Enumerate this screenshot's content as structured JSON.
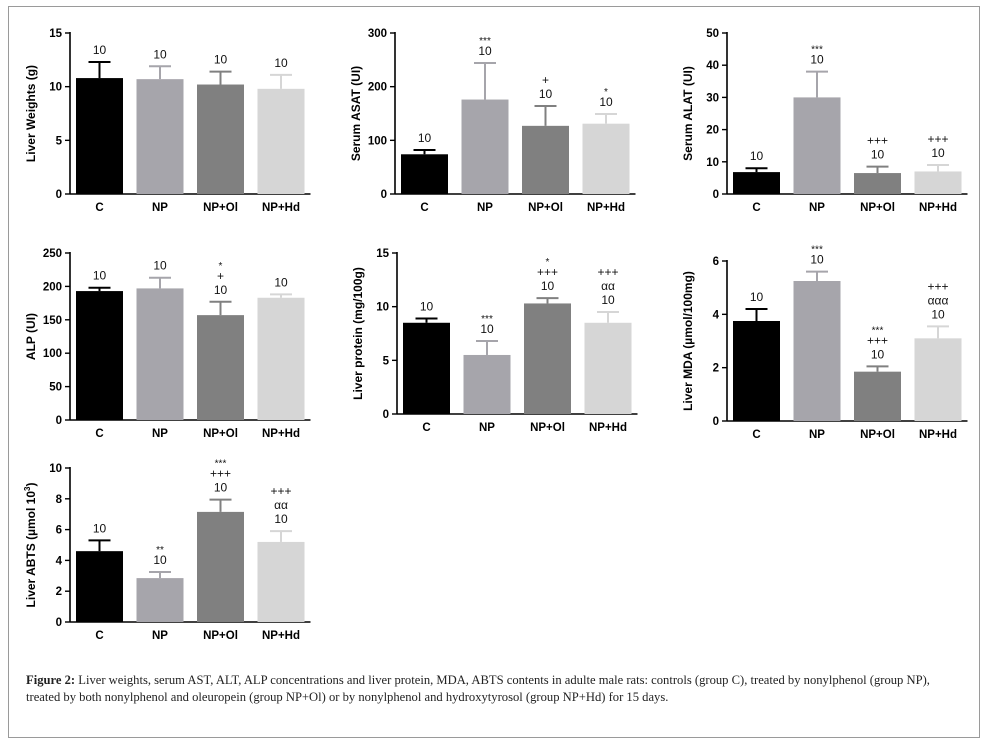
{
  "colors": {
    "C": "#000000",
    "NP": "#a6a5ab",
    "NP+Ol": "#808080",
    "NP+Hd": "#d6d6d6"
  },
  "caption": {
    "label": "Figure 2:",
    "text": "Liver weights, serum AST, ALT, ALP concentrations and liver protein, MDA, ABTS contents in adulte male rats: controls (group C), treated by nonylphenol (group NP), treated by both nonylphenol and oleuropein (group NP+Ol) or by nonylphenol and hydroxytyrosol (group NP+Hd) for 15 days."
  },
  "chart_data": [
    {
      "type": "bar",
      "ylabel": "Liver Weights (g)",
      "categories": [
        "C",
        "NP",
        "NP+Ol",
        "NP+Hd"
      ],
      "values": [
        10.8,
        10.7,
        10.2,
        9.8
      ],
      "errors": [
        1.5,
        1.2,
        1.2,
        1.3
      ],
      "ylim": [
        0,
        15
      ],
      "yticks": [
        0,
        5,
        10,
        15
      ],
      "annotations": [
        [
          "10"
        ],
        [
          "10"
        ],
        [
          "10"
        ],
        [
          "10"
        ]
      ]
    },
    {
      "type": "bar",
      "ylabel": "Serum ASAT (UI)",
      "categories": [
        "C",
        "NP",
        "NP+Ol",
        "NP+Hd"
      ],
      "values": [
        74,
        176,
        127,
        131
      ],
      "errors": [
        8,
        68,
        37,
        18
      ],
      "ylim": [
        0,
        300
      ],
      "yticks": [
        0,
        100,
        200,
        300
      ],
      "annotations": [
        [
          "10"
        ],
        [
          "***",
          "10"
        ],
        [
          "+",
          "10"
        ],
        [
          "*",
          "10"
        ]
      ]
    },
    {
      "type": "bar",
      "ylabel": "Serum ALAT (UI)",
      "categories": [
        "C",
        "NP",
        "NP+Ol",
        "NP+Hd"
      ],
      "values": [
        6.8,
        30,
        6.5,
        7
      ],
      "errors": [
        1.2,
        8,
        2,
        2
      ],
      "ylim": [
        0,
        50
      ],
      "yticks": [
        0,
        10,
        20,
        30,
        40,
        50
      ],
      "annotations": [
        [
          "10"
        ],
        [
          "***",
          "10"
        ],
        [
          "+++",
          "10"
        ],
        [
          "+++",
          "10"
        ]
      ]
    },
    {
      "type": "bar",
      "ylabel": "ALP (UI)",
      "categories": [
        "C",
        "NP",
        "NP+Ol",
        "NP+Hd"
      ],
      "values": [
        193,
        197,
        157,
        183
      ],
      "errors": [
        5,
        16,
        20,
        5
      ],
      "ylim": [
        0,
        250
      ],
      "yticks": [
        0,
        50,
        100,
        150,
        200,
        250
      ],
      "annotations": [
        [
          "10"
        ],
        [
          "10"
        ],
        [
          "*",
          "+",
          "10"
        ],
        [
          "10"
        ]
      ]
    },
    {
      "type": "bar",
      "ylabel": "Liver protein (mg/100g)",
      "categories": [
        "C",
        "NP",
        "NP+Ol",
        "NP+Hd"
      ],
      "values": [
        8.5,
        5.5,
        10.3,
        8.5
      ],
      "errors": [
        0.4,
        1.3,
        0.5,
        1.0
      ],
      "ylim": [
        0,
        15
      ],
      "yticks": [
        0,
        5,
        10,
        15
      ],
      "annotations": [
        [
          "10"
        ],
        [
          "***",
          "10"
        ],
        [
          "*",
          "+++",
          "10"
        ],
        [
          "+++",
          "αα",
          "10"
        ]
      ]
    },
    {
      "type": "bar",
      "ylabel": "Liver MDA (µmol/100mg)",
      "categories": [
        "C",
        "NP",
        "NP+Ol",
        "NP+Hd"
      ],
      "values": [
        3.75,
        5.25,
        1.85,
        3.1
      ],
      "errors": [
        0.45,
        0.35,
        0.2,
        0.45
      ],
      "ylim": [
        0,
        6
      ],
      "yticks": [
        0,
        2,
        4,
        6
      ],
      "annotations": [
        [
          "10"
        ],
        [
          "***",
          "10"
        ],
        [
          "***",
          "+++",
          "10"
        ],
        [
          "+++",
          "ααα",
          "10"
        ]
      ]
    },
    {
      "type": "bar",
      "ylabel": "Liver ABTS (µmol 10",
      "ylabel_sup": "3",
      "ylabel_end": ")",
      "categories": [
        "C",
        "NP",
        "NP+Ol",
        "NP+Hd"
      ],
      "values": [
        4.6,
        2.85,
        7.15,
        5.2
      ],
      "errors": [
        0.7,
        0.4,
        0.8,
        0.7
      ],
      "ylim": [
        0,
        10
      ],
      "yticks": [
        0,
        2,
        4,
        6,
        8,
        10
      ],
      "annotations": [
        [
          "10"
        ],
        [
          "**",
          "10"
        ],
        [
          "***",
          "+++",
          "10"
        ],
        [
          "+++",
          "αα",
          "10"
        ]
      ]
    }
  ]
}
